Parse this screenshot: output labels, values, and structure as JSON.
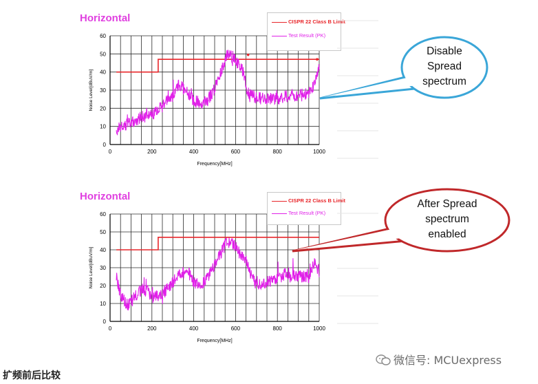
{
  "caption": "扩频前后比较",
  "watermark": {
    "prefix_icon": "wechat-icon",
    "text": "微信号: MCUexpress"
  },
  "callouts": [
    {
      "lines": [
        "Disable",
        "Spread",
        "spectrum"
      ],
      "color": "#3aa6d8"
    },
    {
      "lines": [
        "After Spread",
        "spectrum",
        "enabled"
      ],
      "color": "#c0282a"
    }
  ],
  "colors": {
    "limit": "#e8262a",
    "result": "#e020e8",
    "title": "#e040e0",
    "grid": "#222222"
  },
  "chart_data": [
    {
      "type": "line",
      "title": "Horizontal",
      "xlabel": "Frequency[MHz]",
      "ylabel": "Noise Level[dBuV/m]",
      "xlim": [
        0,
        1000
      ],
      "ylim": [
        0,
        60
      ],
      "xticks": [
        0,
        200,
        400,
        600,
        800,
        1000
      ],
      "yticks": [
        0,
        10,
        20,
        30,
        40,
        50,
        60
      ],
      "grid": true,
      "legend_position": "top-right",
      "series": [
        {
          "name": "CISPR 22 Class B Limit",
          "color": "#e8262a",
          "x": [
            30,
            230,
            230,
            1000
          ],
          "y": [
            40,
            40,
            47,
            47
          ]
        },
        {
          "name": "Test Result (PK)",
          "color": "#e020e8",
          "x": [
            30,
            60,
            100,
            150,
            200,
            230,
            260,
            300,
            330,
            370,
            400,
            430,
            460,
            500,
            530,
            560,
            590,
            620,
            640,
            660,
            700,
            750,
            800,
            850,
            900,
            950,
            980,
            1000
          ],
          "y": [
            8,
            10,
            12,
            15,
            17,
            19,
            22,
            27,
            33,
            29,
            24,
            23,
            23,
            31,
            40,
            50,
            48,
            43,
            39,
            28,
            26,
            25,
            25,
            27,
            27,
            28,
            34,
            43
          ]
        },
        {
          "name": "",
          "color": "#e8262a",
          "type": "scatter",
          "x": [
            660,
            990
          ],
          "y": [
            49.5,
            47
          ]
        }
      ]
    },
    {
      "type": "line",
      "title": "Horizontal",
      "xlabel": "Frequency[MHz]",
      "ylabel": "Noise Level[dBuV/m]",
      "xlim": [
        0,
        1000
      ],
      "ylim": [
        0,
        60
      ],
      "xticks": [
        0,
        200,
        400,
        600,
        800,
        1000
      ],
      "yticks": [
        0,
        10,
        20,
        30,
        40,
        50,
        60
      ],
      "grid": true,
      "legend_position": "top-right",
      "series": [
        {
          "name": "CISPR 22 Class B Limit",
          "color": "#e8262a",
          "x": [
            30,
            230,
            230,
            1000
          ],
          "y": [
            40,
            40,
            47,
            47
          ]
        },
        {
          "name": "Test Result (PK)",
          "color": "#e020e8",
          "x": [
            30,
            50,
            70,
            90,
            120,
            150,
            180,
            200,
            230,
            260,
            300,
            330,
            370,
            400,
            430,
            460,
            500,
            530,
            560,
            590,
            620,
            650,
            680,
            700,
            750,
            800,
            850,
            900,
            950,
            980,
            1000
          ],
          "y": [
            26,
            14,
            11,
            9,
            14,
            18,
            17,
            13,
            14,
            16,
            22,
            26,
            28,
            22,
            21,
            23,
            32,
            38,
            45,
            43,
            38,
            35,
            24,
            21,
            22,
            24,
            27,
            25,
            25,
            33,
            28
          ]
        }
      ]
    }
  ]
}
